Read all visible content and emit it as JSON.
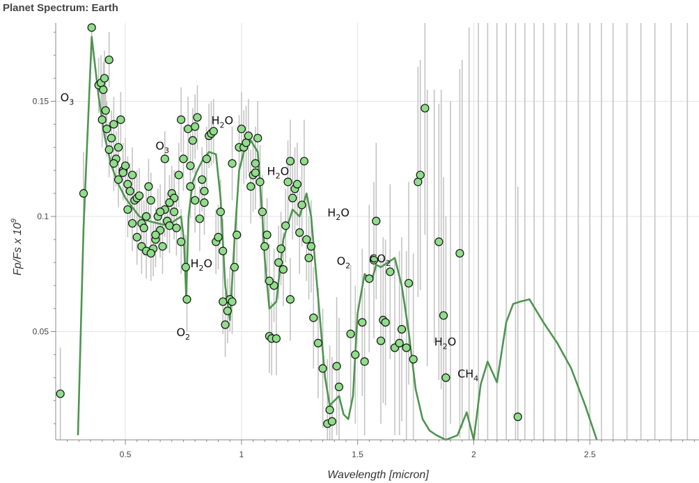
{
  "chart_data": {
    "type": "scatter",
    "title": "Planet Spectrum: Earth",
    "xlabel": "Wavelength [micron]",
    "ylabel": "Fp/Fs x 10^9",
    "xlim": [
      0.2,
      2.97
    ],
    "ylim": [
      0.003,
      0.184
    ],
    "xticks": [
      {
        "value": 0.5,
        "label": "0.5"
      },
      {
        "value": 1.0,
        "label": "1"
      },
      {
        "value": 1.5,
        "label": "1.5"
      },
      {
        "value": 2.0,
        "label": "2"
      },
      {
        "value": 2.5,
        "label": "2.5"
      }
    ],
    "yticks": [
      {
        "value": 0.05,
        "label": "0.05"
      },
      {
        "value": 0.1,
        "label": "0.1"
      },
      {
        "value": 0.15,
        "label": "0.15"
      }
    ],
    "grid": true,
    "colors": {
      "model": "#4e944f",
      "point_fill": "#90dd8a",
      "point_edge": "#111111",
      "errorbar": "#c4c4c4",
      "grid": "#e3e3e3"
    },
    "model_line": {
      "x": [
        0.296,
        0.32,
        0.355,
        0.385,
        0.41,
        0.44,
        0.47,
        0.5,
        0.53,
        0.56,
        0.6,
        0.64,
        0.68,
        0.71,
        0.74,
        0.752,
        0.762,
        0.772,
        0.79,
        0.81,
        0.83,
        0.86,
        0.89,
        0.91,
        0.93,
        0.95,
        0.97,
        0.99,
        1.01,
        1.04,
        1.07,
        1.09,
        1.1,
        1.12,
        1.15,
        1.18,
        1.22,
        1.25,
        1.28,
        1.3,
        1.33,
        1.36,
        1.38,
        1.42,
        1.44,
        1.46,
        1.48,
        1.5,
        1.53,
        1.56,
        1.58,
        1.6,
        1.63,
        1.66,
        1.69,
        1.72,
        1.75,
        1.78,
        1.81,
        1.84,
        1.88,
        1.93,
        1.97,
        2.0,
        2.03,
        2.06,
        2.1,
        2.14,
        2.17,
        2.2,
        2.24,
        2.3,
        2.36,
        2.42,
        2.48,
        2.53
      ],
      "y": [
        0.005,
        0.095,
        0.178,
        0.152,
        0.135,
        0.122,
        0.114,
        0.108,
        0.104,
        0.1,
        0.098,
        0.097,
        0.096,
        0.098,
        0.1,
        0.09,
        0.065,
        0.1,
        0.115,
        0.12,
        0.124,
        0.128,
        0.127,
        0.108,
        0.07,
        0.055,
        0.09,
        0.12,
        0.128,
        0.133,
        0.128,
        0.1,
        0.082,
        0.06,
        0.063,
        0.09,
        0.103,
        0.1,
        0.11,
        0.1,
        0.065,
        0.03,
        0.018,
        0.022,
        0.014,
        0.012,
        0.022,
        0.058,
        0.075,
        0.072,
        0.079,
        0.078,
        0.08,
        0.082,
        0.07,
        0.05,
        0.025,
        0.012,
        0.007,
        0.005,
        0.003,
        0.005,
        0.015,
        0.003,
        0.027,
        0.037,
        0.028,
        0.054,
        0.062,
        0.063,
        0.064,
        0.054,
        0.045,
        0.034,
        0.018,
        0.003
      ]
    },
    "observations": {
      "x": [
        0.22,
        0.32,
        0.355,
        0.385,
        0.395,
        0.4,
        0.41,
        0.405,
        0.415,
        0.42,
        0.43,
        0.44,
        0.45,
        0.46,
        0.47,
        0.48,
        0.49,
        0.5,
        0.51,
        0.52,
        0.53,
        0.54,
        0.55,
        0.56,
        0.57,
        0.58,
        0.59,
        0.6,
        0.61,
        0.62,
        0.63,
        0.64,
        0.65,
        0.66,
        0.67,
        0.68,
        0.69,
        0.7,
        0.71,
        0.72,
        0.73,
        0.74,
        0.75,
        0.76,
        0.765,
        0.77,
        0.78,
        0.79,
        0.8,
        0.81,
        0.82,
        0.83,
        0.84,
        0.85,
        0.86,
        0.87,
        0.88,
        0.89,
        0.9,
        0.91,
        0.92,
        0.93,
        0.94,
        0.95,
        0.96,
        0.97,
        0.98,
        0.99,
        1.0,
        1.01,
        1.02,
        1.03,
        1.04,
        1.05,
        1.06,
        1.07,
        1.08,
        1.09,
        1.1,
        1.11,
        1.12,
        1.13,
        1.14,
        1.15,
        1.16,
        1.17,
        1.18,
        1.19,
        1.2,
        1.21,
        1.22,
        1.23,
        1.24,
        1.25,
        1.26,
        1.27,
        1.28,
        1.29,
        1.3,
        1.31,
        1.33,
        1.35,
        1.37,
        1.38,
        1.39,
        1.41,
        1.42,
        1.47,
        1.49,
        1.52,
        1.53,
        1.55,
        1.57,
        1.58,
        1.6,
        1.61,
        1.62,
        1.64,
        1.66,
        1.68,
        1.69,
        1.71,
        1.72,
        1.74,
        1.76,
        1.77,
        1.79,
        1.85,
        1.87,
        1.88,
        1.94,
        2.19,
        0.43,
        0.45,
        0.47,
        0.49,
        0.51,
        0.53,
        0.55,
        0.57,
        0.59,
        0.61,
        0.63,
        0.65,
        0.67,
        0.69,
        0.71,
        0.74,
        0.78,
        0.8,
        0.84,
        0.92,
        0.96,
        1.06,
        1.12,
        1.21
      ],
      "y": [
        0.023,
        0.11,
        0.182,
        0.157,
        0.158,
        0.142,
        0.16,
        0.155,
        0.146,
        0.138,
        0.168,
        0.134,
        0.14,
        0.125,
        0.13,
        0.142,
        0.12,
        0.122,
        0.114,
        0.111,
        0.118,
        0.107,
        0.108,
        0.109,
        0.097,
        0.095,
        0.1,
        0.113,
        0.107,
        0.086,
        0.09,
        0.1,
        0.094,
        0.087,
        0.103,
        0.098,
        0.096,
        0.11,
        0.108,
        0.095,
        0.118,
        0.142,
        0.125,
        0.078,
        0.064,
        0.138,
        0.122,
        0.133,
        0.139,
        0.143,
        0.099,
        0.116,
        0.111,
        0.125,
        0.135,
        0.136,
        0.137,
        0.089,
        0.091,
        0.102,
        0.085,
        0.053,
        0.059,
        0.064,
        0.063,
        0.078,
        0.092,
        0.13,
        0.138,
        0.13,
        0.132,
        0.135,
        0.113,
        0.118,
        0.123,
        0.134,
        0.115,
        0.102,
        0.087,
        0.092,
        0.048,
        0.047,
        0.07,
        0.047,
        0.08,
        0.086,
        0.077,
        0.096,
        0.115,
        0.124,
        0.108,
        0.112,
        0.114,
        0.093,
        0.105,
        0.124,
        0.09,
        0.082,
        0.087,
        0.056,
        0.045,
        0.034,
        0.01,
        0.016,
        0.011,
        0.035,
        0.026,
        0.049,
        0.04,
        0.054,
        0.037,
        0.073,
        0.081,
        0.098,
        0.046,
        0.055,
        0.054,
        0.076,
        0.043,
        0.045,
        0.051,
        0.043,
        0.071,
        0.038,
        0.115,
        0.118,
        0.147,
        0.089,
        0.057,
        0.03,
        0.084,
        0.013,
        0.129,
        0.123,
        0.116,
        0.119,
        0.103,
        0.097,
        0.091,
        0.087,
        0.085,
        0.084,
        0.092,
        0.102,
        0.125,
        0.106,
        0.102,
        0.089,
        0.113,
        0.107,
        0.106,
        0.063,
        0.123,
        0.119,
        0.072,
        0.064
      ],
      "err": [
        0.02,
        0.018,
        0.014,
        0.012,
        0.012,
        0.012,
        0.012,
        0.012,
        0.012,
        0.012,
        0.012,
        0.012,
        0.012,
        0.012,
        0.012,
        0.012,
        0.012,
        0.012,
        0.012,
        0.012,
        0.012,
        0.012,
        0.012,
        0.012,
        0.012,
        0.012,
        0.012,
        0.012,
        0.012,
        0.012,
        0.012,
        0.012,
        0.012,
        0.012,
        0.012,
        0.012,
        0.012,
        0.012,
        0.012,
        0.012,
        0.014,
        0.014,
        0.014,
        0.014,
        0.014,
        0.014,
        0.014,
        0.014,
        0.014,
        0.014,
        0.014,
        0.014,
        0.014,
        0.014,
        0.014,
        0.014,
        0.014,
        0.014,
        0.014,
        0.014,
        0.014,
        0.014,
        0.014,
        0.014,
        0.014,
        0.014,
        0.014,
        0.014,
        0.016,
        0.016,
        0.016,
        0.016,
        0.016,
        0.016,
        0.016,
        0.016,
        0.016,
        0.016,
        0.016,
        0.016,
        0.016,
        0.016,
        0.016,
        0.016,
        0.016,
        0.016,
        0.016,
        0.016,
        0.018,
        0.018,
        0.018,
        0.018,
        0.018,
        0.018,
        0.018,
        0.018,
        0.018,
        0.018,
        0.02,
        0.022,
        0.024,
        0.026,
        0.028,
        0.028,
        0.028,
        0.03,
        0.03,
        0.03,
        0.03,
        0.032,
        0.032,
        0.032,
        0.034,
        0.034,
        0.036,
        0.036,
        0.036,
        0.038,
        0.038,
        0.04,
        0.04,
        0.042,
        0.044,
        0.046,
        0.05,
        0.05,
        0.055,
        0.06,
        0.06,
        0.07,
        0.08,
        0.1,
        0.012,
        0.012,
        0.012,
        0.012,
        0.012,
        0.012,
        0.012,
        0.012,
        0.012,
        0.012,
        0.012,
        0.012,
        0.012,
        0.012,
        0.012,
        0.014,
        0.014,
        0.014,
        0.014,
        0.014,
        0.016,
        0.016,
        0.016,
        0.018
      ]
    },
    "annotations": [
      {
        "base": "O",
        "sub": "3",
        "x": 0.22,
        "y": 0.15
      },
      {
        "base": "O",
        "sub": "3",
        "x": 0.63,
        "y": 0.129
      },
      {
        "base": "H",
        "sub": "2",
        "tail": "O",
        "x": 0.87,
        "y": 0.14
      },
      {
        "base": "H",
        "sub": "2",
        "tail": "O",
        "x": 1.11,
        "y": 0.118
      },
      {
        "base": "H",
        "sub": "2",
        "tail": "O",
        "x": 1.37,
        "y": 0.1
      },
      {
        "base": "CO",
        "sub": "2",
        "x": 1.55,
        "y": 0.08
      },
      {
        "base": "H",
        "sub": "2",
        "tail": "O",
        "x": 0.78,
        "y": 0.078
      },
      {
        "base": "O",
        "sub": "2",
        "x": 1.41,
        "y": 0.079
      },
      {
        "base": "O",
        "sub": "2",
        "x": 0.72,
        "y": 0.048
      },
      {
        "base": "H",
        "sub": "2",
        "tail": "O",
        "x": 1.83,
        "y": 0.044
      },
      {
        "base": "CH",
        "sub": "4",
        "x": 1.93,
        "y": 0.03
      }
    ],
    "extra_errorbars": {
      "x": [
        1.8,
        1.83,
        1.86,
        1.9,
        1.95,
        1.98,
        2.02,
        2.06,
        2.1,
        2.14,
        2.18,
        2.22,
        2.26,
        2.3,
        2.35,
        2.4,
        2.45,
        2.5,
        2.55,
        2.6,
        2.66,
        2.72,
        2.78,
        2.85,
        2.92
      ],
      "center": [
        0.095,
        0.1,
        0.09,
        0.08,
        0.088,
        0.092,
        0.1,
        0.09,
        0.095,
        0.1,
        0.09,
        0.095,
        0.1,
        0.09,
        0.095,
        0.1,
        0.09,
        0.095,
        0.1,
        0.09,
        0.095,
        0.1,
        0.09,
        0.095,
        0.1
      ],
      "err": [
        0.06,
        0.055,
        0.065,
        0.07,
        0.08,
        0.09,
        0.1,
        0.1,
        0.1,
        0.1,
        0.1,
        0.1,
        0.1,
        0.1,
        0.1,
        0.1,
        0.1,
        0.1,
        0.1,
        0.1,
        0.1,
        0.1,
        0.1,
        0.1,
        0.1
      ]
    }
  }
}
